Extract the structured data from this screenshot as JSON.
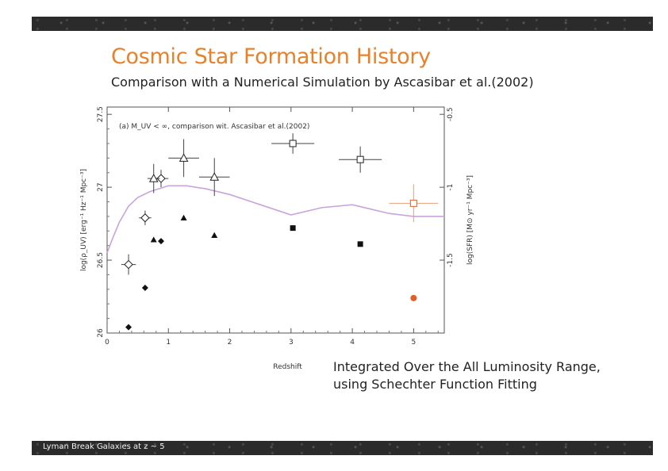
{
  "header": {
    "title": "Cosmic Star Formation History",
    "subtitle": "Comparison with a Numerical Simulation by Ascasibar et al.(2002)"
  },
  "note": {
    "line1": "Integrated Over the All Luminosity Range,",
    "line2": "using Schechter Function Fitting"
  },
  "footer": {
    "text": "Lyman Break Galaxies at z ~ 5"
  },
  "colors": {
    "title": "#e8822a",
    "model_curve": "#c9a4dc",
    "highlight": "#e0602a"
  },
  "chart_data": {
    "type": "scatter",
    "panel_label": "(a) M_UV < ∞, comparison wit. Ascasibar et al.(2002)",
    "xlabel": "Redshift",
    "ylabel_left": "log(ρ_UV) [erg⁻¹ Hz⁻¹ Mpc⁻³]",
    "ylabel_right": "log(SFR) [M⊙ yr⁻¹ Mpc⁻³]",
    "xlim": [
      0,
      5.5
    ],
    "ylim": [
      26,
      27.55
    ],
    "xticks": [
      "0",
      "1",
      "2",
      "3",
      "4",
      "5"
    ],
    "yticks_left": [
      "26",
      "26.5",
      "27",
      "27.5"
    ],
    "yticks_right": [
      "-1.5",
      "-1",
      "-0.5"
    ],
    "grid": false,
    "series": [
      {
        "marker": "open-diamond-errorbar",
        "points": [
          {
            "x": 0.35,
            "y": 26.47,
            "xerr": 0.12,
            "yerr": 0.07
          },
          {
            "x": 0.62,
            "y": 26.79,
            "xerr": 0.1,
            "yerr": 0.05
          },
          {
            "x": 0.88,
            "y": 27.06,
            "xerr": 0.12,
            "yerr": 0.06
          }
        ]
      },
      {
        "marker": "filled-diamond",
        "points": [
          {
            "x": 0.35,
            "y": 26.04
          },
          {
            "x": 0.62,
            "y": 26.31
          },
          {
            "x": 0.88,
            "y": 26.63
          }
        ]
      },
      {
        "marker": "open-triangle-errorbar",
        "points": [
          {
            "x": 0.76,
            "y": 27.06,
            "xerr": 0.1,
            "yerr": 0.1
          },
          {
            "x": 1.25,
            "y": 27.2,
            "xerr": 0.25,
            "yerr": 0.13
          },
          {
            "x": 1.75,
            "y": 27.07,
            "xerr": 0.25,
            "yerr": 0.13
          }
        ]
      },
      {
        "marker": "filled-triangle",
        "points": [
          {
            "x": 0.76,
            "y": 26.64
          },
          {
            "x": 1.25,
            "y": 26.79
          },
          {
            "x": 1.75,
            "y": 26.67
          }
        ]
      },
      {
        "marker": "open-square-errorbar",
        "points": [
          {
            "x": 3.03,
            "y": 27.3,
            "xerr": 0.35,
            "yerr": 0.07
          },
          {
            "x": 4.13,
            "y": 27.19,
            "xerr": 0.35,
            "yerr": 0.09
          }
        ]
      },
      {
        "marker": "filled-square",
        "points": [
          {
            "x": 3.03,
            "y": 26.72
          },
          {
            "x": 4.13,
            "y": 26.61
          }
        ]
      },
      {
        "marker": "open-square-errorbar-highlight",
        "points": [
          {
            "x": 5.0,
            "y": 26.89,
            "xerr": 0.4,
            "yerr": 0.13
          }
        ]
      },
      {
        "marker": "filled-circle-highlight",
        "points": [
          {
            "x": 5.0,
            "y": 26.24
          }
        ]
      }
    ],
    "model_curve": {
      "x": [
        0,
        0.1,
        0.2,
        0.35,
        0.5,
        0.7,
        1.0,
        1.3,
        1.6,
        2.0,
        2.5,
        3.0,
        3.5,
        4.0,
        4.3,
        4.6,
        5.0,
        5.5
      ],
      "y": [
        26.55,
        26.66,
        26.76,
        26.87,
        26.93,
        26.97,
        27.01,
        27.01,
        26.99,
        26.95,
        26.88,
        26.81,
        26.86,
        26.88,
        26.85,
        26.82,
        26.8,
        26.8
      ]
    }
  }
}
